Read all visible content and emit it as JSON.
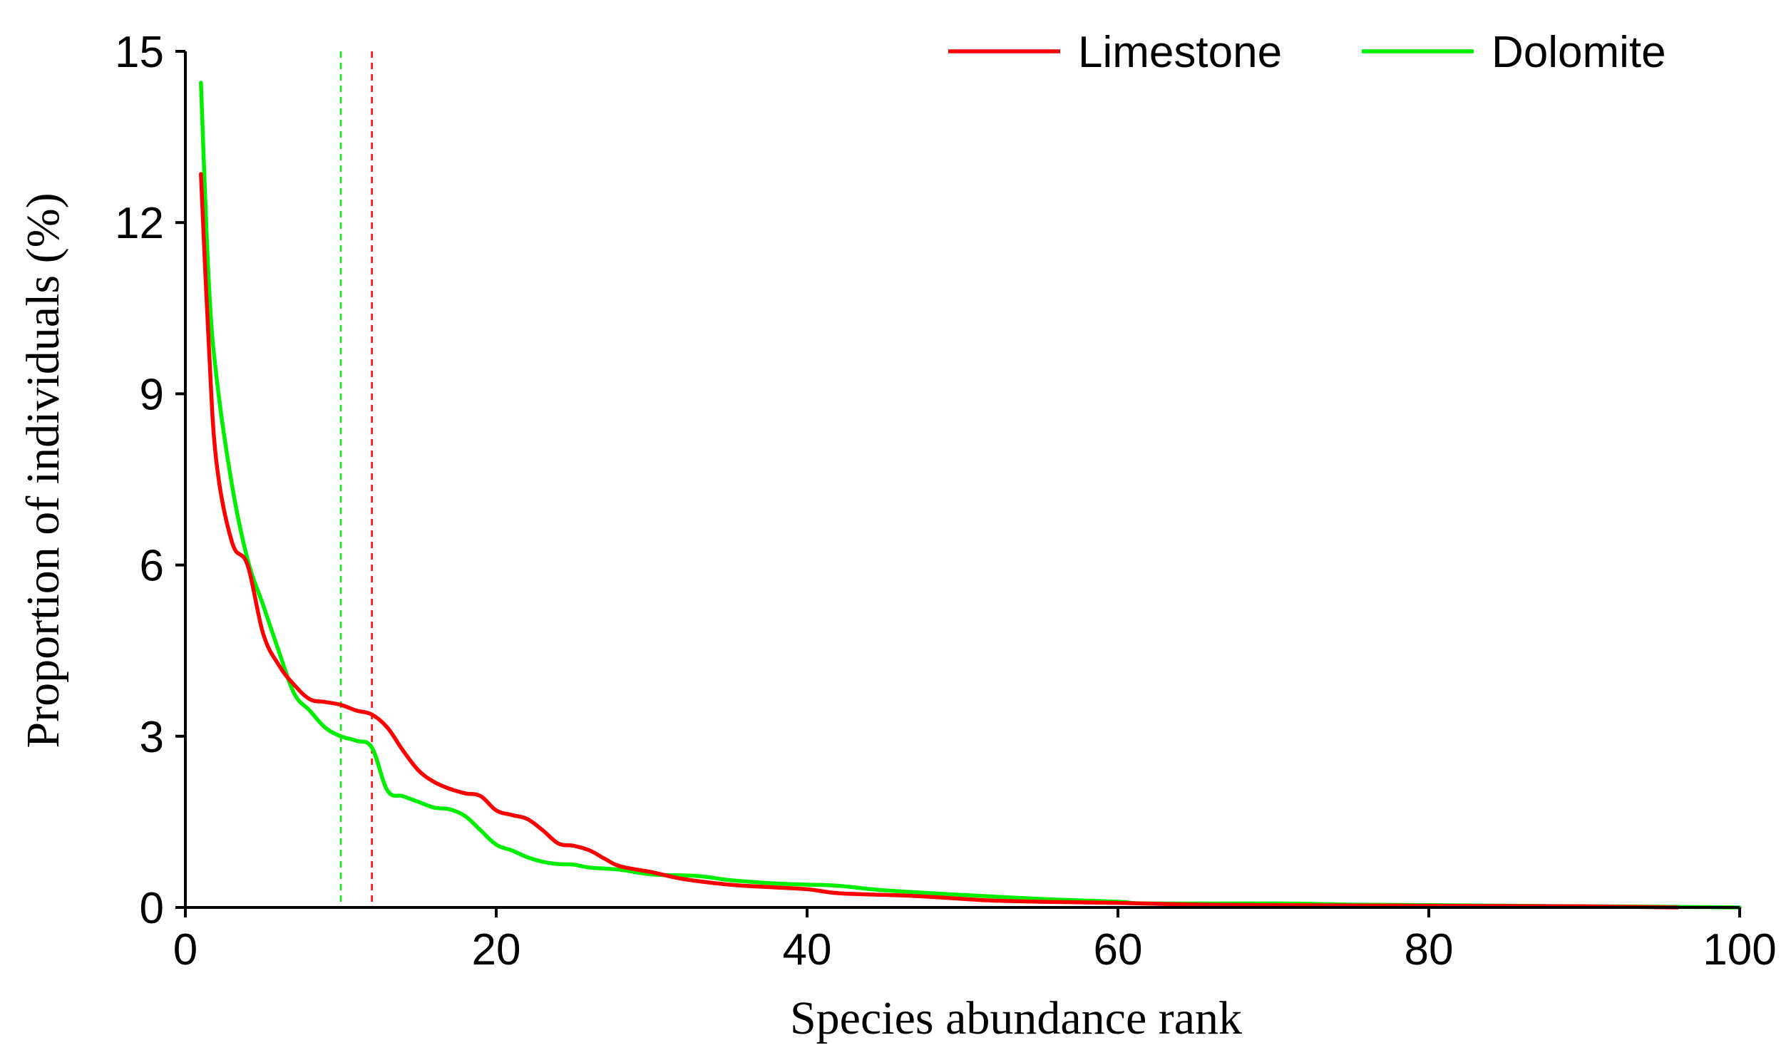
{
  "chart_data": {
    "type": "line",
    "title": "",
    "xlabel": "Species abundance rank",
    "ylabel": "Proportion of individuals (%)",
    "xlim": [
      0,
      100
    ],
    "ylim": [
      0,
      15
    ],
    "xticks": [
      0,
      20,
      40,
      60,
      80,
      100
    ],
    "yticks": [
      0,
      3,
      6,
      9,
      12,
      15
    ],
    "xtick_labels": [
      "0",
      "20",
      "40",
      "60",
      "80",
      "100"
    ],
    "ytick_labels": [
      "0",
      "3",
      "6",
      "9",
      "12",
      "15"
    ],
    "grid": false,
    "legend_position": "top-right",
    "series": [
      {
        "name": "Limestone",
        "color": "#ff0000",
        "x": [
          1,
          1.5,
          2,
          3,
          4,
          5,
          6,
          7,
          8,
          9,
          10,
          11,
          12,
          13,
          14,
          15,
          16,
          17,
          18,
          19,
          20,
          21,
          22,
          23,
          24,
          25,
          26,
          27,
          28,
          30,
          32,
          35,
          38,
          40,
          42,
          45,
          47,
          50,
          52,
          55,
          60,
          65,
          70,
          80,
          90,
          96
        ],
        "y": [
          12.85,
          9.9,
          7.8,
          6.4,
          6.0,
          4.8,
          4.25,
          3.9,
          3.65,
          3.6,
          3.55,
          3.45,
          3.38,
          3.15,
          2.75,
          2.4,
          2.2,
          2.08,
          2.0,
          1.95,
          1.7,
          1.62,
          1.55,
          1.35,
          1.12,
          1.08,
          1.0,
          0.85,
          0.72,
          0.62,
          0.5,
          0.4,
          0.35,
          0.32,
          0.25,
          0.22,
          0.2,
          0.15,
          0.12,
          0.1,
          0.08,
          0.05,
          0.04,
          0.03,
          0.02,
          0.0
        ]
      },
      {
        "name": "Dolomite",
        "color": "#00ee00",
        "x": [
          1,
          1.5,
          2,
          3,
          4,
          5,
          6,
          7,
          8,
          9,
          10,
          11,
          12,
          13,
          14,
          15,
          16,
          17,
          18,
          19,
          20,
          21,
          22,
          23,
          24,
          25,
          26,
          28,
          30,
          33,
          35,
          38,
          40,
          42,
          45,
          50,
          55,
          60,
          62,
          70,
          73,
          75,
          80,
          90,
          96,
          100
        ],
        "y": [
          14.45,
          11.0,
          9.3,
          7.4,
          6.1,
          5.3,
          4.5,
          3.75,
          3.45,
          3.15,
          3.0,
          2.92,
          2.8,
          2.05,
          1.95,
          1.85,
          1.75,
          1.72,
          1.6,
          1.35,
          1.1,
          1.0,
          0.88,
          0.8,
          0.76,
          0.75,
          0.7,
          0.66,
          0.58,
          0.55,
          0.48,
          0.42,
          0.4,
          0.38,
          0.3,
          0.22,
          0.15,
          0.1,
          0.07,
          0.07,
          0.06,
          0.05,
          0.04,
          0.02,
          0.01,
          0.0
        ]
      }
    ],
    "reference_lines": [
      {
        "x": 10,
        "color": "#00ee00",
        "series": "Dolomite"
      },
      {
        "x": 12,
        "color": "#ff0000",
        "series": "Limestone"
      }
    ]
  }
}
